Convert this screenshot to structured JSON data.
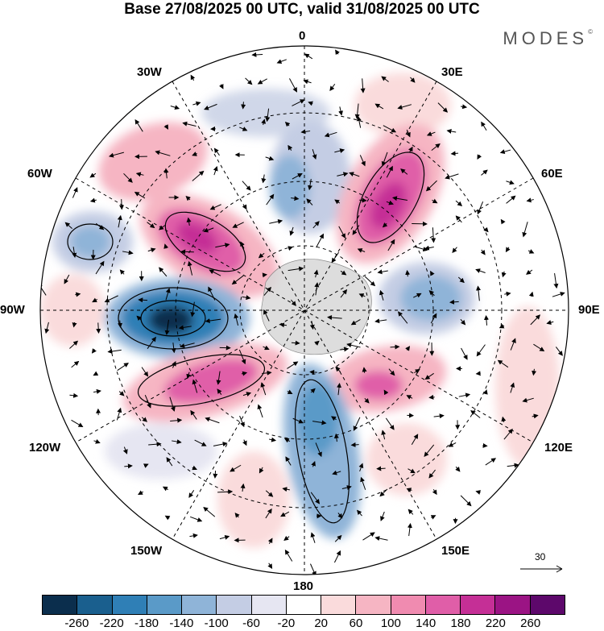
{
  "header": {
    "title": "Base 27/08/2025 00 UTC, valid 31/08/2025 00 UTC",
    "brand": "MODES",
    "brand_mark": "©"
  },
  "map": {
    "projection": "south-polar-stereographic",
    "longitude_labels": {
      "top": "0",
      "top_right": "30E",
      "right_upper": "60E",
      "right": "90E",
      "right_lower": "120E",
      "bottom_right": "150E",
      "bottom": "180",
      "bottom_left": "150W",
      "left_lower": "120W",
      "left": "90W",
      "left_upper": "60W",
      "top_left": "30W"
    },
    "reference_vector_label": "30"
  },
  "colorbar": {
    "colors": [
      "#0b2e4d",
      "#1a5f8e",
      "#2f7fb6",
      "#5a9ac8",
      "#8fb4d8",
      "#c4cde4",
      "#e6e6f2",
      "#ffffff",
      "#fadbdc",
      "#f6b5c3",
      "#f08bb0",
      "#e05ea8",
      "#c52f96",
      "#9b1484",
      "#5d086b"
    ],
    "ticks": [
      "-260",
      "-220",
      "-180",
      "-140",
      "-100",
      "-60",
      "-20",
      "20",
      "60",
      "100",
      "140",
      "180",
      "220",
      "260"
    ]
  }
}
